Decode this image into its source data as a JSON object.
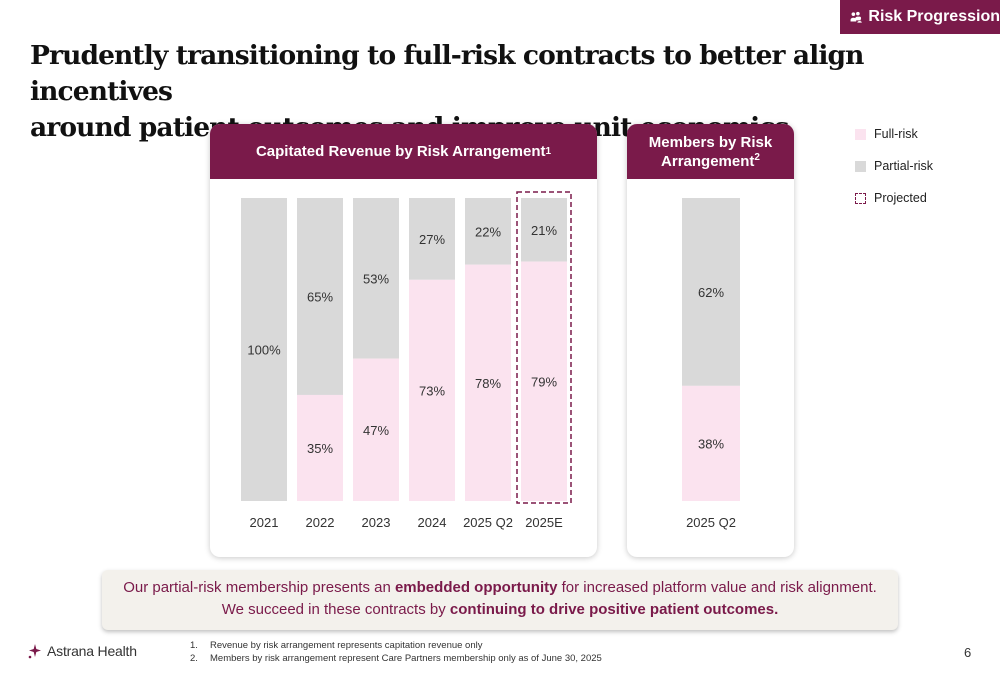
{
  "badge": {
    "label": "Risk Progression",
    "icon": "people-group-icon"
  },
  "title": {
    "line1": "Prudently transitioning to full-risk contracts to better align incentives",
    "line2": "around patient outcomes and improve unit economics"
  },
  "colors": {
    "brand": "#7a1a4a",
    "full_risk": "#fbe3ef",
    "partial_risk": "#d9d9d9",
    "callout_bg": "#f3f1ec"
  },
  "legend": {
    "full": "Full-risk",
    "partial": "Partial-risk",
    "projected": "Projected"
  },
  "chart_data": [
    {
      "type": "bar",
      "stacked": true,
      "percent": true,
      "title": "Capitated Revenue by Risk Arrangement",
      "title_footnote": "1",
      "categories": [
        "2021",
        "2022",
        "2023",
        "2024",
        "2025 Q2",
        "2025E"
      ],
      "series": [
        {
          "name": "Full-risk",
          "values": [
            0,
            35,
            47,
            73,
            78,
            79
          ]
        },
        {
          "name": "Partial-risk",
          "values": [
            100,
            65,
            53,
            27,
            22,
            21
          ]
        }
      ],
      "projected_categories": [
        "2025E"
      ],
      "ylim": [
        0,
        100
      ]
    },
    {
      "type": "bar",
      "stacked": true,
      "percent": true,
      "title": "Members by Risk Arrangement",
      "title_footnote": "2",
      "categories": [
        "2025 Q2"
      ],
      "series": [
        {
          "name": "Full-risk",
          "values": [
            38
          ]
        },
        {
          "name": "Partial-risk",
          "values": [
            62
          ]
        }
      ],
      "ylim": [
        0,
        100
      ]
    }
  ],
  "callout": {
    "l1a": "Our partial-risk membership presents an ",
    "l1b": "embedded opportunity",
    "l1c": " for increased platform value and risk alignment.",
    "l2a": "We succeed in these contracts by ",
    "l2b": "continuing to drive positive patient outcomes."
  },
  "logo": {
    "text": "Astrana Health",
    "icon": "astrana-sparkle-icon"
  },
  "footnotes": [
    {
      "num": "1.",
      "text": "Revenue by risk arrangement represents capitation revenue only"
    },
    {
      "num": "2.",
      "text": "Members by risk arrangement represent Care Partners membership only as of June 30, 2025"
    }
  ],
  "page_number": "6"
}
